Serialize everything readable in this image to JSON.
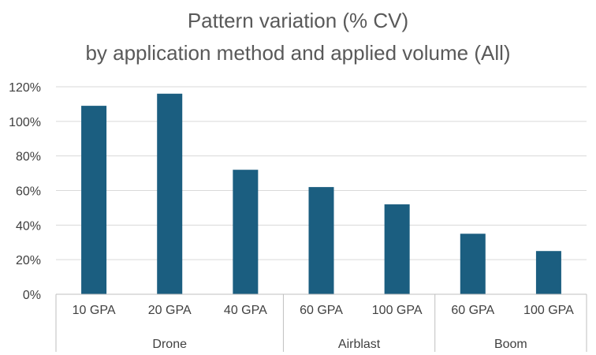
{
  "chart_data": {
    "type": "bar",
    "title_lines": [
      "Pattern variation (% CV)",
      "by application method and applied volume (All)"
    ],
    "categories": [
      "10 GPA",
      "20 GPA",
      "40 GPA",
      "60 GPA",
      "100 GPA",
      "60 GPA",
      "100 GPA"
    ],
    "groups": [
      {
        "name": "Drone",
        "count": 3
      },
      {
        "name": "Airblast",
        "count": 2
      },
      {
        "name": "Boom",
        "count": 2
      }
    ],
    "values": [
      109,
      116,
      72,
      62,
      52,
      35,
      25
    ],
    "ylim": [
      0,
      120
    ],
    "y_ticks": [
      "0%",
      "20%",
      "40%",
      "60%",
      "80%",
      "100%",
      "120%"
    ],
    "y_tick_values": [
      0,
      20,
      40,
      60,
      80,
      100,
      120
    ],
    "grid": true,
    "bar_color": "#1b5e80",
    "xlabel": "",
    "ylabel": ""
  }
}
